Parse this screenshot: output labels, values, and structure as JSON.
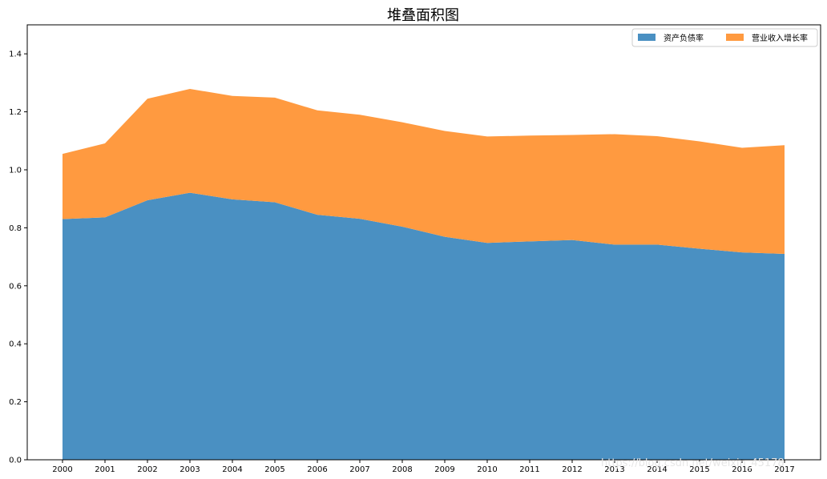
{
  "chart_data": {
    "type": "area",
    "stacked": true,
    "title": "堆叠面积图",
    "xlabel": "",
    "ylabel": "",
    "x": [
      "2000",
      "2001",
      "2002",
      "2003",
      "2004",
      "2005",
      "2006",
      "2007",
      "2008",
      "2009",
      "2010",
      "2011",
      "2012",
      "2013",
      "2014",
      "2015",
      "2016",
      "2017"
    ],
    "ylim": [
      0,
      1.5
    ],
    "yticks": [
      "0.0",
      "0.2",
      "0.4",
      "0.6",
      "0.8",
      "1.0",
      "1.2",
      "1.4"
    ],
    "grid": false,
    "legend_position": "top-right",
    "series": [
      {
        "name": "资产负债率",
        "color": "#4a90c2",
        "values": [
          0.83,
          0.836,
          0.895,
          0.921,
          0.898,
          0.888,
          0.845,
          0.831,
          0.804,
          0.769,
          0.748,
          0.753,
          0.758,
          0.742,
          0.742,
          0.728,
          0.715,
          0.71
        ]
      },
      {
        "name": "营业收入增长率",
        "color": "#ff9a40",
        "values": [
          0.225,
          0.255,
          0.35,
          0.358,
          0.357,
          0.361,
          0.36,
          0.359,
          0.36,
          0.365,
          0.367,
          0.365,
          0.362,
          0.381,
          0.374,
          0.37,
          0.361,
          0.375
        ]
      }
    ],
    "watermark": "https://blog.csdn.net/weixin_45178"
  }
}
